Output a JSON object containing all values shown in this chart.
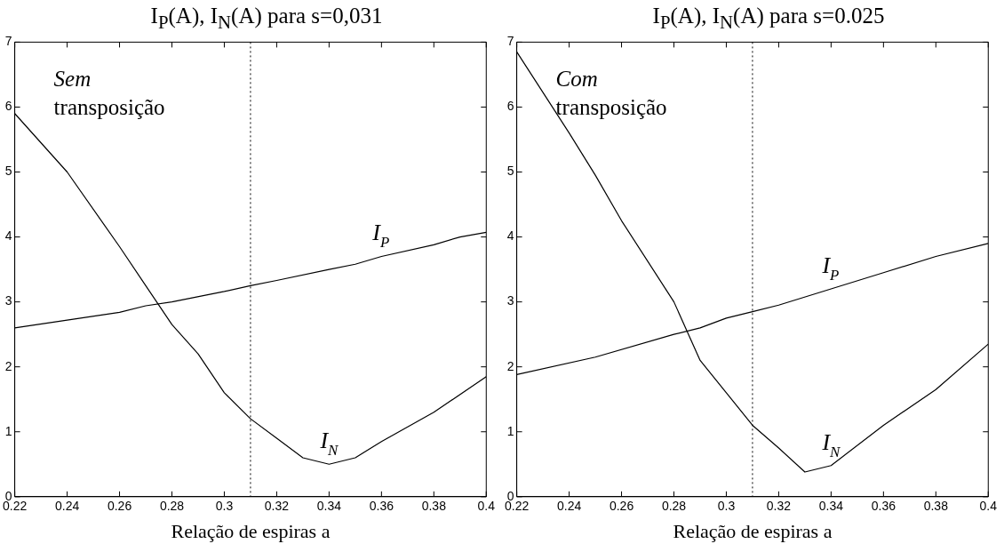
{
  "chart_data": [
    {
      "type": "line",
      "title": "I$_{P}$(A), I$_{N}$(A) para s=0,031",
      "xlabel": "Relação de espiras a",
      "xlim": [
        0.22,
        0.4
      ],
      "xticks": [
        0.22,
        0.24,
        0.26,
        0.28,
        0.3,
        0.32,
        0.34,
        0.36,
        0.38,
        0.4
      ],
      "ylim": [
        0,
        7
      ],
      "yticks": [
        0,
        1,
        2,
        3,
        4,
        5,
        6,
        7
      ],
      "grid": false,
      "legend": false,
      "series": [
        {
          "name": "I$_{P}$",
          "color": "#000000",
          "x": [
            0.22,
            0.24,
            0.26,
            0.27,
            0.28,
            0.3,
            0.31,
            0.32,
            0.34,
            0.35,
            0.36,
            0.38,
            0.39,
            0.4
          ],
          "values": [
            2.6,
            2.72,
            2.84,
            2.94,
            3.0,
            3.16,
            3.25,
            3.33,
            3.5,
            3.58,
            3.7,
            3.88,
            4.0,
            4.07
          ]
        },
        {
          "name": "I$_{N}$",
          "color": "#000000",
          "x": [
            0.22,
            0.24,
            0.26,
            0.27,
            0.28,
            0.29,
            0.3,
            0.31,
            0.32,
            0.33,
            0.34,
            0.35,
            0.36,
            0.38,
            0.4
          ],
          "values": [
            5.9,
            5.0,
            3.85,
            3.25,
            2.65,
            2.2,
            1.6,
            1.2,
            0.9,
            0.6,
            0.5,
            0.6,
            0.85,
            1.3,
            1.85
          ]
        }
      ],
      "ref_lines": [
        {
          "axis": "x",
          "value": 0.31,
          "color": "#000000",
          "line_style": "dotted"
        }
      ],
      "annotations": [
        "Sem transposição"
      ]
    },
    {
      "type": "line",
      "title": "I$_{P}$(A), I$_{N}$(A) para s=0.025",
      "xlabel": "Relação de espiras a",
      "xlim": [
        0.22,
        0.4
      ],
      "xticks": [
        0.22,
        0.24,
        0.26,
        0.28,
        0.3,
        0.32,
        0.34,
        0.36,
        0.38,
        0.4
      ],
      "ylim": [
        0,
        7
      ],
      "yticks": [
        0,
        1,
        2,
        3,
        4,
        5,
        6,
        7
      ],
      "grid": false,
      "legend": false,
      "series": [
        {
          "name": "I$_{P}$",
          "color": "#000000",
          "x": [
            0.22,
            0.25,
            0.28,
            0.29,
            0.3,
            0.31,
            0.32,
            0.34,
            0.36,
            0.38,
            0.4
          ],
          "values": [
            1.88,
            2.15,
            2.5,
            2.6,
            2.75,
            2.85,
            2.95,
            3.2,
            3.45,
            3.7,
            3.9
          ]
        },
        {
          "name": "I$_{N}$",
          "color": "#000000",
          "x": [
            0.22,
            0.24,
            0.25,
            0.26,
            0.28,
            0.29,
            0.3,
            0.31,
            0.32,
            0.33,
            0.34,
            0.36,
            0.38,
            0.4
          ],
          "values": [
            6.85,
            5.6,
            4.95,
            4.25,
            3.0,
            2.1,
            1.6,
            1.1,
            0.75,
            0.38,
            0.48,
            1.1,
            1.65,
            2.35
          ]
        }
      ],
      "ref_lines": [
        {
          "axis": "x",
          "value": 0.31,
          "color": "#000000",
          "line_style": "dotted"
        }
      ],
      "annotations": [
        "Com transposição"
      ]
    }
  ]
}
